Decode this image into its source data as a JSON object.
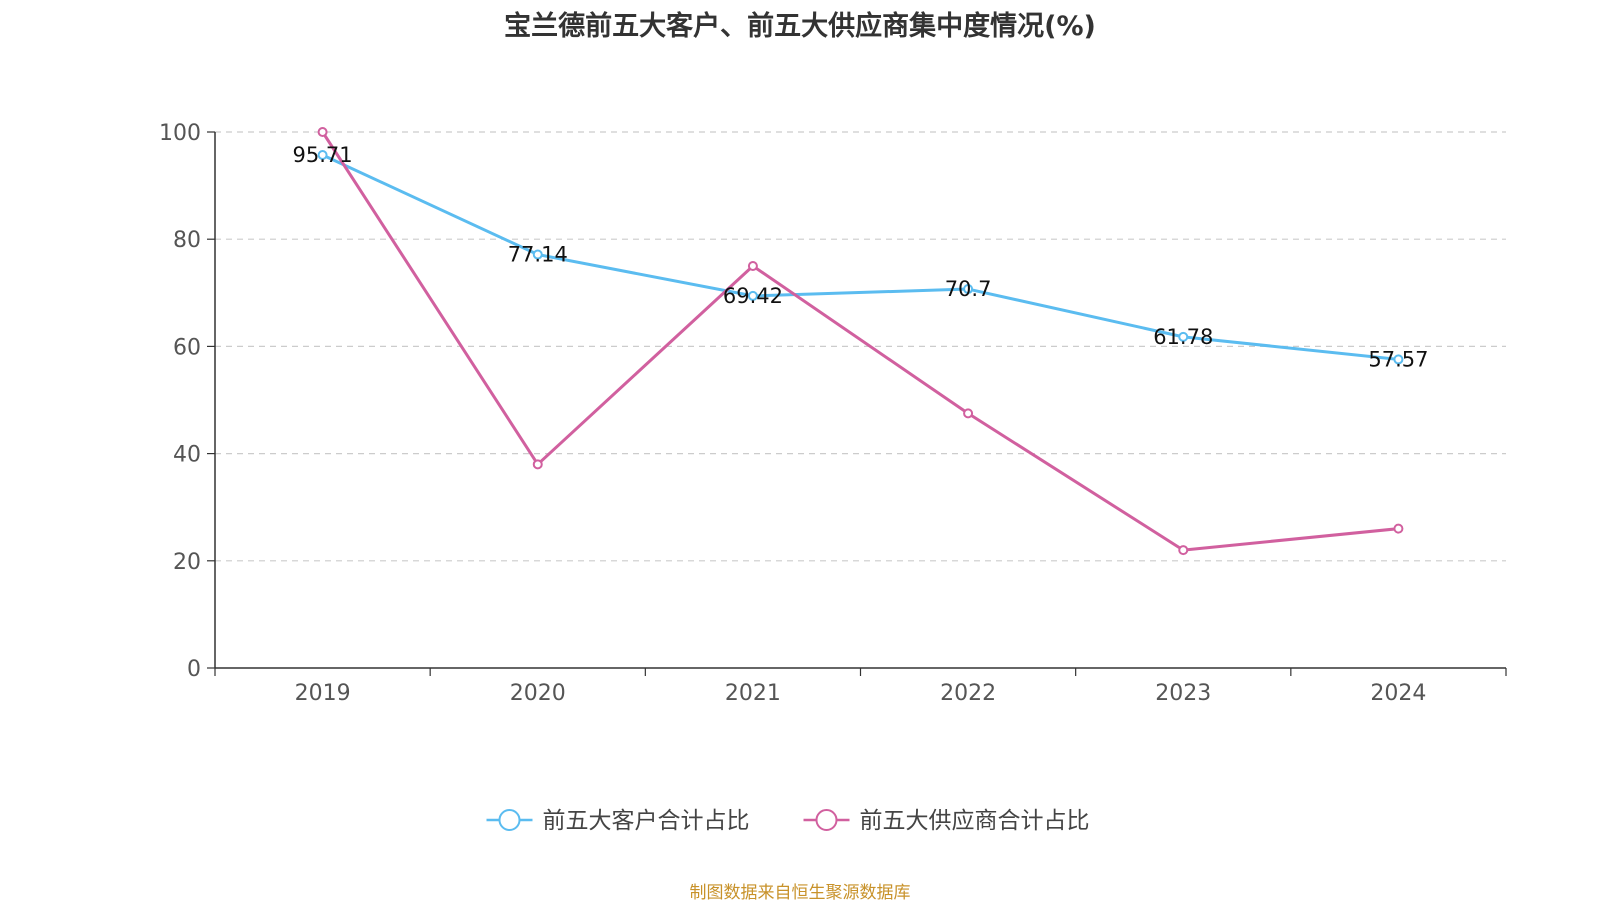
{
  "chart_data": {
    "type": "line",
    "title": "宝兰德前五大客户、前五大供应商集中度情况(%)",
    "categories": [
      "2019",
      "2020",
      "2021",
      "2022",
      "2023",
      "2024"
    ],
    "ylim": [
      0,
      100
    ],
    "yticks": [
      0,
      20,
      40,
      60,
      80,
      100
    ],
    "grid": true,
    "legend_position": "bottom",
    "series": [
      {
        "name": "前五大客户合计占比",
        "color": "#5bbcf0",
        "values": [
          95.71,
          77.14,
          69.42,
          70.7,
          61.78,
          57.57
        ],
        "labels": [
          "95.71",
          "77.14",
          "69.42",
          "70.7",
          "61.78",
          "57.57"
        ]
      },
      {
        "name": "前五大供应商合计占比",
        "color": "#d1609f",
        "values": [
          100,
          38,
          75,
          47.5,
          22,
          26
        ],
        "labels": null
      }
    ]
  },
  "source": "制图数据来自恒生聚源数据库"
}
